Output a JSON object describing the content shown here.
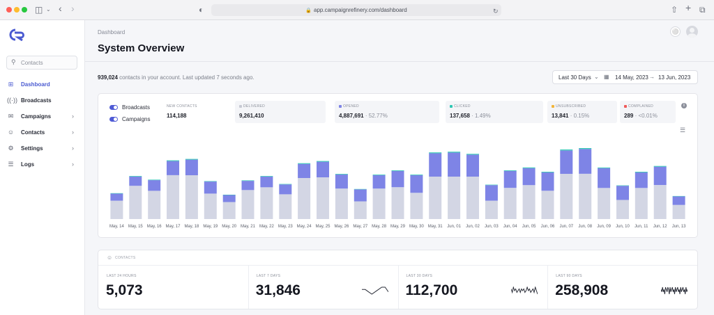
{
  "browser": {
    "url": "app.campaignrefinery.com/dashboard"
  },
  "sidebar": {
    "logo": "CR",
    "search": {
      "placeholder": "Contacts"
    },
    "items": [
      {
        "label": "Dashboard",
        "icon": "grid-icon",
        "active": true,
        "chevron": false
      },
      {
        "label": "Broadcasts",
        "icon": "broadcast-icon",
        "active": false,
        "chevron": false
      },
      {
        "label": "Campaigns",
        "icon": "inbox-icon",
        "active": false,
        "chevron": true
      },
      {
        "label": "Contacts",
        "icon": "user-icon",
        "active": false,
        "chevron": true
      },
      {
        "label": "Settings",
        "icon": "gear-icon",
        "active": false,
        "chevron": true
      },
      {
        "label": "Logs",
        "icon": "list-icon",
        "active": false,
        "chevron": true
      }
    ]
  },
  "header": {
    "breadcrumb": "Dashboard",
    "title": "System Overview"
  },
  "summary": {
    "count": "939,024",
    "text": "contacts in your account. Last updated 7 seconds ago."
  },
  "range": {
    "selected": "Last 30 Days",
    "start": "14 May, 2023",
    "end": "13 Jun, 2023"
  },
  "toggles": [
    {
      "label": "Broadcasts",
      "on": true
    },
    {
      "label": "Campaigns",
      "on": true
    }
  ],
  "stats": [
    {
      "label": "NEW CONTACTS",
      "value": "114,188",
      "pct": "",
      "color": ""
    },
    {
      "label": "DELIVERED",
      "value": "9,261,410",
      "pct": "",
      "color": "#c7cad3"
    },
    {
      "label": "OPENED",
      "value": "4,887,691",
      "pct": "52.77%",
      "color": "#7e84e6"
    },
    {
      "label": "CLICKED",
      "value": "137,658",
      "pct": "1.49%",
      "color": "#2fc7b4"
    },
    {
      "label": "UNSUBSCRIBED",
      "value": "13,841",
      "pct": "0.15%",
      "color": "#f2b53a"
    },
    {
      "label": "COMPLAINED",
      "value": "289",
      "pct": "<0.01%",
      "color": "#ef5a5a"
    }
  ],
  "chart_data": {
    "type": "bar",
    "stacked": true,
    "categories": [
      "May, 14",
      "May, 15",
      "May, 16",
      "May, 17",
      "May, 18",
      "May, 19",
      "May, 20",
      "May, 21",
      "May, 22",
      "May, 23",
      "May, 24",
      "May, 25",
      "May, 26",
      "May, 27",
      "May, 28",
      "May, 29",
      "May, 30",
      "May, 31",
      "Jun, 01",
      "Jun, 02",
      "Jun, 03",
      "Jun, 04",
      "Jun, 05",
      "Jun, 06",
      "Jun, 07",
      "Jun, 08",
      "Jun, 09",
      "Jun, 10",
      "Jun, 11",
      "Jun, 12",
      "Jun, 13"
    ],
    "series": [
      {
        "color": "#d3d6e4",
        "values": [
          26,
          47,
          40,
          62,
          62,
          36,
          24,
          41,
          45,
          35,
          58,
          59,
          43,
          25,
          43,
          45,
          37,
          60,
          60,
          60,
          26,
          44,
          48,
          40,
          64,
          64,
          44,
          27,
          44,
          48,
          20
        ]
      },
      {
        "color": "#7e84e6",
        "values": [
          10,
          13,
          15,
          20,
          22,
          17,
          10,
          13,
          15,
          14,
          20,
          22,
          20,
          17,
          19,
          23,
          25,
          33,
          34,
          31,
          22,
          24,
          24,
          26,
          33,
          35,
          28,
          20,
          22,
          26,
          12
        ]
      },
      {
        "color": "#2fc7b4",
        "values": [
          0.6,
          0.8,
          0.7,
          1.0,
          1.0,
          0.6,
          0.4,
          0.7,
          0.8,
          0.6,
          1.0,
          1.0,
          0.8,
          0.5,
          0.8,
          0.9,
          0.8,
          1.2,
          1.2,
          1.1,
          0.6,
          0.9,
          1.0,
          0.9,
          1.3,
          1.3,
          0.9,
          0.6,
          0.9,
          1.0,
          0.5
        ]
      }
    ],
    "grid": false,
    "legend": "none"
  },
  "contacts": {
    "title": "CONTACTS",
    "metrics": [
      {
        "label": "LAST 24 HOURS",
        "value": "5,073",
        "spark": []
      },
      {
        "label": "LAST 7 DAYS",
        "value": "31,846",
        "spark": [
          5,
          5,
          4,
          3,
          4,
          5,
          6,
          6,
          4
        ]
      },
      {
        "label": "LAST 30 DAYS",
        "value": "112,700",
        "spark": [
          6,
          4,
          7,
          5,
          6,
          4,
          5,
          6,
          4,
          6,
          5,
          6,
          4,
          5,
          7,
          5,
          6,
          4,
          5,
          6,
          4,
          7,
          5,
          3
        ]
      },
      {
        "label": "LAST 90 DAYS",
        "value": "258,908",
        "spark": [
          5,
          4,
          6,
          4,
          5,
          3,
          6,
          5,
          4,
          6,
          5,
          3,
          6,
          4,
          5,
          6,
          4,
          5,
          3,
          6,
          4,
          5,
          6,
          4,
          5,
          3,
          6,
          4,
          5,
          6,
          4,
          5,
          3,
          6,
          4,
          5
        ]
      }
    ]
  }
}
